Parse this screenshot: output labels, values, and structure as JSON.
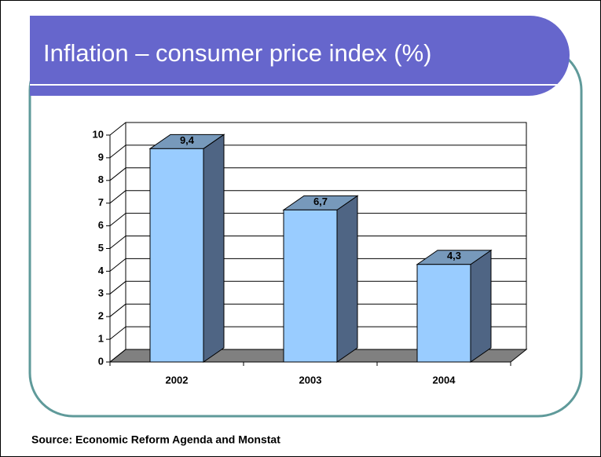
{
  "chart_data": {
    "type": "bar",
    "title": "Inflation – consumer price index (%)",
    "categories": [
      "2002",
      "2003",
      "2004"
    ],
    "values": [
      9.4,
      6.7,
      4.3
    ],
    "value_labels": [
      "9,4",
      "6,7",
      "4,3"
    ],
    "color": "#99ccff",
    "ylim": [
      0,
      10
    ],
    "yticks": [
      0,
      1,
      2,
      3,
      4,
      5,
      6,
      7,
      8,
      9,
      10
    ],
    "grid": true,
    "source": "Source: Economic Reform Agenda and Monstat"
  }
}
